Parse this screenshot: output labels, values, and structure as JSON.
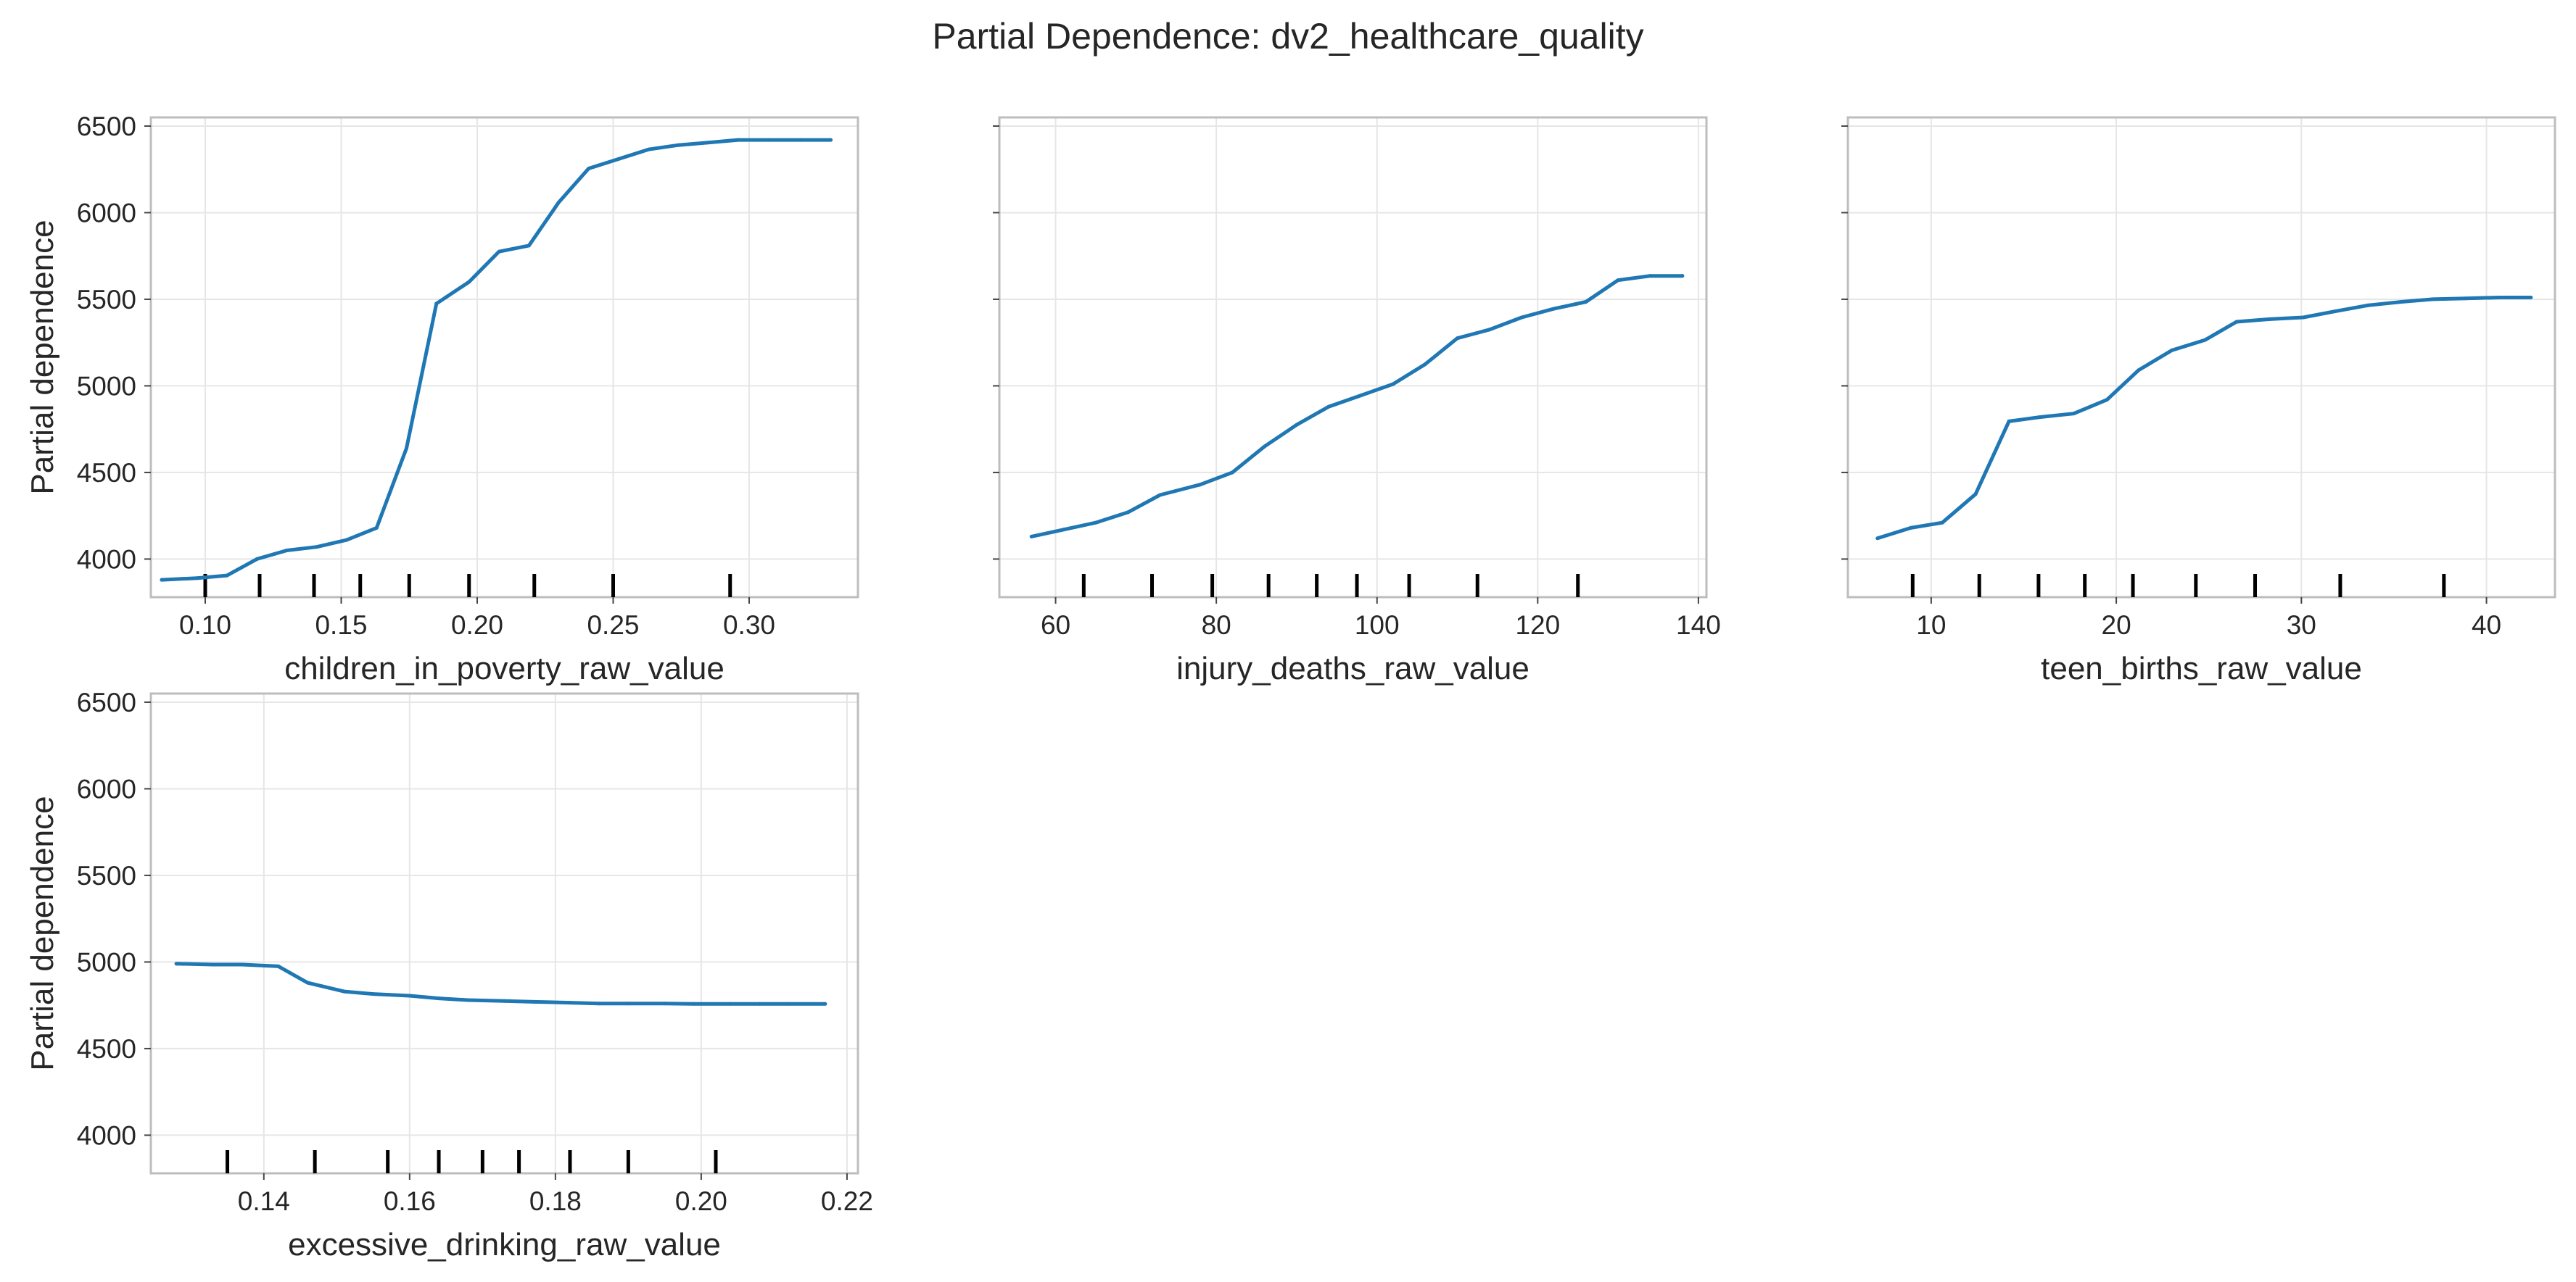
{
  "figure": {
    "title": "Partial Dependence: dv2_healthcare_quality"
  },
  "colors": {
    "line": "#1f77b4",
    "rug": "#000000",
    "grid": "#e6e6e6",
    "frame": "#bdbdbd"
  },
  "chart_data": [
    {
      "type": "line",
      "xlabel": "children_in_poverty_raw_value",
      "ylabel": "Partial dependence",
      "xlim": [
        0.08,
        0.34
      ],
      "ylim": [
        3780,
        6550
      ],
      "xticks": [
        0.1,
        0.15,
        0.2,
        0.25,
        0.3
      ],
      "xtick_labels": [
        "0.10",
        "0.15",
        "0.20",
        "0.25",
        "0.30"
      ],
      "yticks": [
        4000,
        4500,
        5000,
        5500,
        6000,
        6500
      ],
      "ytick_labels": [
        "4000",
        "4500",
        "5000",
        "5500",
        "6000",
        "6500"
      ],
      "show_yticklabels": true,
      "grid": true,
      "x": [
        0.084,
        0.097,
        0.108,
        0.119,
        0.13,
        0.141,
        0.152,
        0.163,
        0.174,
        0.185,
        0.197,
        0.208,
        0.219,
        0.23,
        0.241,
        0.252,
        0.263,
        0.274,
        0.285,
        0.296,
        0.307,
        0.319,
        0.33
      ],
      "y": [
        3880,
        3890,
        3905,
        4000,
        4050,
        4070,
        4110,
        4180,
        4640,
        5475,
        5600,
        5775,
        5810,
        6060,
        6255,
        6310,
        6365,
        6390,
        6405,
        6420,
        6420,
        6420,
        6420
      ],
      "deciles": [
        0.1,
        0.12,
        0.14,
        0.157,
        0.175,
        0.197,
        0.221,
        0.25,
        0.293
      ]
    },
    {
      "type": "line",
      "xlabel": "injury_deaths_raw_value",
      "ylabel": "",
      "xlim": [
        53,
        141
      ],
      "ylim": [
        3780,
        6550
      ],
      "xticks": [
        60,
        80,
        100,
        120,
        140
      ],
      "xtick_labels": [
        "60",
        "80",
        "100",
        "120",
        "140"
      ],
      "yticks": [
        4000,
        4500,
        5000,
        5500,
        6000,
        6500
      ],
      "ytick_labels": [],
      "show_yticklabels": false,
      "grid": true,
      "x": [
        57,
        61,
        65,
        69,
        73,
        78,
        82,
        86,
        90,
        94,
        98,
        102,
        106,
        110,
        114,
        118,
        122,
        126,
        130,
        134,
        138
      ],
      "y": [
        4130,
        4170,
        4210,
        4270,
        4370,
        4430,
        4500,
        4650,
        4775,
        4880,
        4945,
        5010,
        5125,
        5275,
        5325,
        5395,
        5445,
        5485,
        5610,
        5635,
        5635
      ],
      "deciles": [
        63.5,
        72,
        79.5,
        86.5,
        92.5,
        97.5,
        104,
        112.5,
        125
      ]
    },
    {
      "type": "line",
      "xlabel": "teen_births_raw_value",
      "ylabel": "",
      "xlim": [
        5.5,
        43.7
      ],
      "ylim": [
        3780,
        6550
      ],
      "xticks": [
        10,
        20,
        30,
        40
      ],
      "xtick_labels": [
        "10",
        "20",
        "30",
        "40"
      ],
      "yticks": [
        4000,
        4500,
        5000,
        5500,
        6000,
        6500
      ],
      "ytick_labels": [],
      "show_yticklabels": false,
      "grid": true,
      "x": [
        7.1,
        8.9,
        10.6,
        12.4,
        14.2,
        15.9,
        17.7,
        19.5,
        21.2,
        23.0,
        24.8,
        26.5,
        28.3,
        30.1,
        31.8,
        33.6,
        35.4,
        37.1,
        38.9,
        40.7,
        42.4
      ],
      "y": [
        4120,
        4180,
        4210,
        4375,
        4795,
        4820,
        4840,
        4920,
        5090,
        5205,
        5265,
        5370,
        5385,
        5395,
        5430,
        5465,
        5485,
        5500,
        5505,
        5510,
        5510
      ],
      "deciles": [
        9,
        12.6,
        15.8,
        18.3,
        20.9,
        24.3,
        27.5,
        32.1,
        37.7
      ]
    },
    {
      "type": "line",
      "xlabel": "excessive_drinking_raw_value",
      "ylabel": "Partial dependence",
      "xlim": [
        0.1245,
        0.2215
      ],
      "ylim": [
        3780,
        6550
      ],
      "xticks": [
        0.14,
        0.16,
        0.18,
        0.2,
        0.22
      ],
      "xtick_labels": [
        "0.14",
        "0.16",
        "0.18",
        "0.20",
        "0.22"
      ],
      "yticks": [
        4000,
        4500,
        5000,
        5500,
        6000,
        6500
      ],
      "ytick_labels": [
        "4000",
        "4500",
        "5000",
        "5500",
        "6000",
        "6500"
      ],
      "show_yticklabels": true,
      "grid": true,
      "x": [
        0.128,
        0.133,
        0.137,
        0.142,
        0.146,
        0.151,
        0.155,
        0.16,
        0.164,
        0.168,
        0.173,
        0.177,
        0.182,
        0.186,
        0.19,
        0.195,
        0.199,
        0.204,
        0.208,
        0.212,
        0.217
      ],
      "y": [
        4990,
        4985,
        4985,
        4975,
        4880,
        4830,
        4815,
        4805,
        4790,
        4780,
        4775,
        4770,
        4765,
        4760,
        4760,
        4760,
        4758,
        4758,
        4758,
        4758,
        4758
      ],
      "deciles": [
        0.135,
        0.147,
        0.157,
        0.164,
        0.17,
        0.175,
        0.182,
        0.19,
        0.202
      ]
    }
  ]
}
